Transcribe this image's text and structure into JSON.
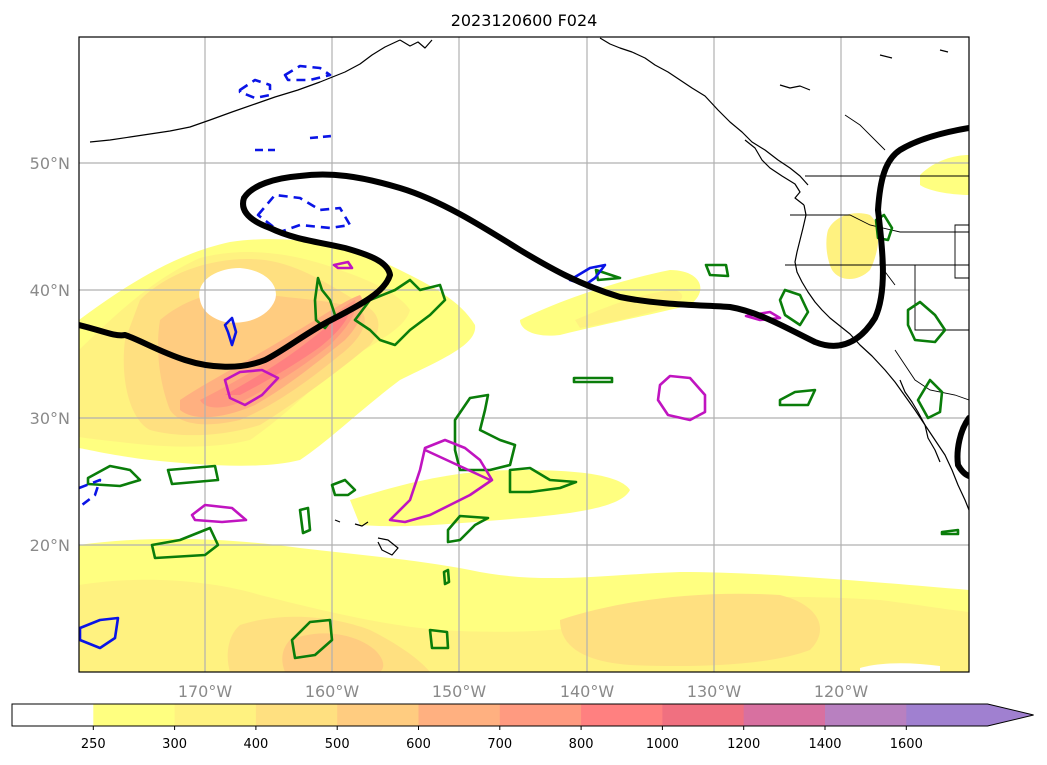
{
  "title": "2023120600 F024",
  "map": {
    "lat_labels": [
      "50°N",
      "40°N",
      "30°N",
      "20°N"
    ],
    "lon_labels": [
      "170°W",
      "160°W",
      "150°W",
      "140°W",
      "130°W",
      "120°W"
    ],
    "field_shading_colors": [
      "#ffff80",
      "#fff280",
      "#ffe080",
      "#ffcc80",
      "#ffb080",
      "#ff9a80",
      "#ff8080",
      "#f07080",
      "#d870a0",
      "#b880c0",
      "#a080d0"
    ],
    "contour_colors": {
      "green": "#0a7d0a",
      "magenta": "#c014c0",
      "blue": "#0a14e6",
      "jet": "#000000"
    }
  },
  "colorbar": {
    "levels": [
      "250",
      "300",
      "400",
      "500",
      "600",
      "700",
      "800",
      "1000",
      "1200",
      "1400",
      "1600"
    ],
    "colors": [
      "#ffffff",
      "#ffff80",
      "#fff280",
      "#ffe080",
      "#ffcc80",
      "#ffb080",
      "#ff9a80",
      "#ff8080",
      "#f07080",
      "#d870a0",
      "#b880c0",
      "#a080d0"
    ],
    "extend": "max"
  }
}
